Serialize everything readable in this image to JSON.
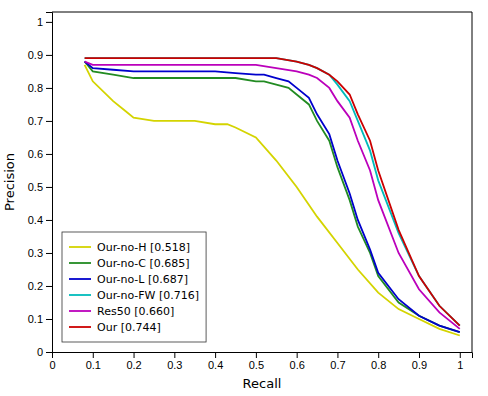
{
  "chart_data": {
    "type": "line",
    "xlabel": "Recall",
    "ylabel": "Precision",
    "xlim": [
      0.0,
      1.03
    ],
    "ylim": [
      0.0,
      1.03
    ],
    "xticks": [
      0,
      0.1,
      0.2,
      0.3,
      0.4,
      0.5,
      0.6,
      0.7,
      0.8,
      0.9,
      1
    ],
    "yticks": [
      0,
      0.1,
      0.2,
      0.3,
      0.4,
      0.5,
      0.6,
      0.7,
      0.8,
      0.9,
      1
    ],
    "grid": false,
    "legend": "lower left",
    "series": [
      {
        "name": "Our-no-H [0.518]",
        "color": "#d4d400",
        "x": [
          0.08,
          0.1,
          0.15,
          0.18,
          0.2,
          0.25,
          0.3,
          0.35,
          0.4,
          0.43,
          0.45,
          0.5,
          0.55,
          0.6,
          0.65,
          0.7,
          0.75,
          0.8,
          0.85,
          0.9,
          0.95,
          1.0
        ],
        "values": [
          0.87,
          0.82,
          0.76,
          0.73,
          0.71,
          0.7,
          0.7,
          0.7,
          0.69,
          0.69,
          0.68,
          0.65,
          0.58,
          0.5,
          0.41,
          0.33,
          0.25,
          0.18,
          0.13,
          0.1,
          0.07,
          0.05
        ]
      },
      {
        "name": "Our-no-C [0.685]",
        "color": "#228B22",
        "x": [
          0.08,
          0.1,
          0.15,
          0.2,
          0.25,
          0.3,
          0.35,
          0.4,
          0.45,
          0.5,
          0.52,
          0.55,
          0.58,
          0.6,
          0.63,
          0.65,
          0.68,
          0.7,
          0.73,
          0.75,
          0.78,
          0.8,
          0.85,
          0.9,
          0.95,
          1.0
        ],
        "values": [
          0.88,
          0.85,
          0.84,
          0.83,
          0.83,
          0.83,
          0.83,
          0.83,
          0.83,
          0.82,
          0.82,
          0.81,
          0.8,
          0.78,
          0.75,
          0.7,
          0.64,
          0.56,
          0.46,
          0.38,
          0.3,
          0.23,
          0.15,
          0.11,
          0.08,
          0.06
        ]
      },
      {
        "name": "Our-no-L [0.687]",
        "color": "#0000CC",
        "x": [
          0.08,
          0.1,
          0.15,
          0.2,
          0.25,
          0.3,
          0.35,
          0.4,
          0.45,
          0.5,
          0.52,
          0.55,
          0.58,
          0.6,
          0.63,
          0.65,
          0.68,
          0.7,
          0.73,
          0.75,
          0.78,
          0.8,
          0.85,
          0.9,
          0.95,
          1.0
        ],
        "values": [
          0.88,
          0.86,
          0.855,
          0.85,
          0.85,
          0.85,
          0.85,
          0.85,
          0.845,
          0.84,
          0.84,
          0.83,
          0.82,
          0.8,
          0.77,
          0.72,
          0.66,
          0.58,
          0.48,
          0.4,
          0.31,
          0.24,
          0.16,
          0.11,
          0.08,
          0.06
        ]
      },
      {
        "name": "Our-no-FW [0.716]",
        "color": "#00BBBB",
        "x": [
          0.08,
          0.1,
          0.15,
          0.2,
          0.25,
          0.3,
          0.35,
          0.4,
          0.45,
          0.5,
          0.55,
          0.6,
          0.63,
          0.65,
          0.68,
          0.7,
          0.73,
          0.75,
          0.78,
          0.8,
          0.85,
          0.9,
          0.95,
          1.0
        ],
        "values": [
          0.89,
          0.89,
          0.89,
          0.89,
          0.89,
          0.89,
          0.89,
          0.89,
          0.89,
          0.89,
          0.89,
          0.88,
          0.87,
          0.86,
          0.84,
          0.81,
          0.76,
          0.7,
          0.61,
          0.52,
          0.36,
          0.23,
          0.14,
          0.08
        ]
      },
      {
        "name": "Res50 [0.660]",
        "color": "#BB00BB",
        "x": [
          0.08,
          0.1,
          0.15,
          0.2,
          0.25,
          0.3,
          0.35,
          0.4,
          0.45,
          0.5,
          0.55,
          0.6,
          0.63,
          0.65,
          0.68,
          0.7,
          0.73,
          0.75,
          0.78,
          0.8,
          0.85,
          0.9,
          0.95,
          1.0
        ],
        "values": [
          0.88,
          0.87,
          0.87,
          0.87,
          0.87,
          0.87,
          0.87,
          0.87,
          0.87,
          0.87,
          0.86,
          0.85,
          0.84,
          0.83,
          0.8,
          0.76,
          0.71,
          0.64,
          0.55,
          0.46,
          0.3,
          0.19,
          0.12,
          0.07
        ]
      },
      {
        "name": "Our [0.744]",
        "color": "#CC0000",
        "x": [
          0.08,
          0.1,
          0.15,
          0.2,
          0.25,
          0.3,
          0.35,
          0.4,
          0.45,
          0.5,
          0.55,
          0.6,
          0.63,
          0.65,
          0.68,
          0.7,
          0.73,
          0.75,
          0.78,
          0.8,
          0.85,
          0.9,
          0.95,
          1.0
        ],
        "values": [
          0.89,
          0.89,
          0.89,
          0.89,
          0.89,
          0.89,
          0.89,
          0.89,
          0.89,
          0.89,
          0.89,
          0.88,
          0.87,
          0.86,
          0.84,
          0.82,
          0.78,
          0.72,
          0.64,
          0.55,
          0.37,
          0.23,
          0.14,
          0.08
        ]
      }
    ]
  }
}
